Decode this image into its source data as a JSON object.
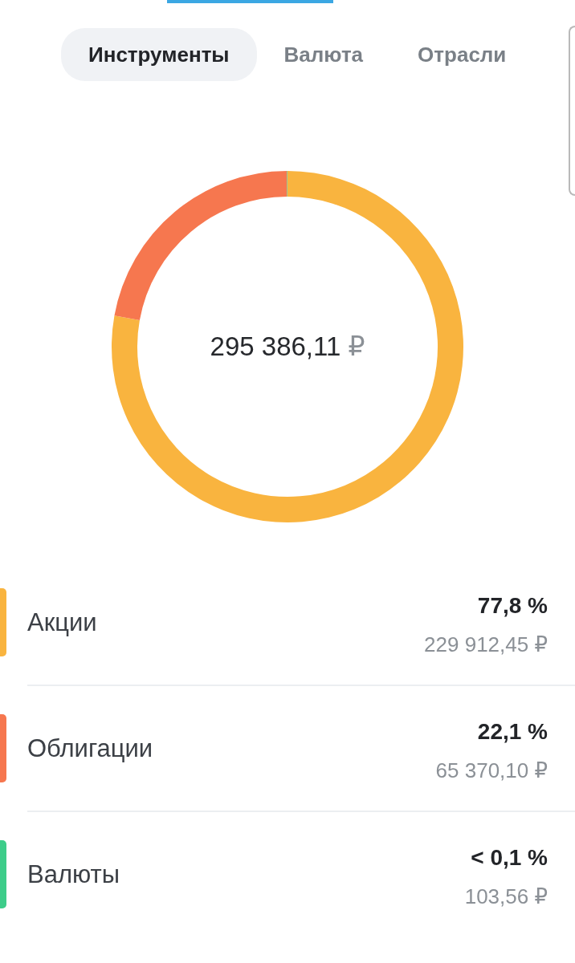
{
  "chart_data": {
    "type": "donut",
    "categories": [
      "Акции",
      "Облигации",
      "Валюты"
    ],
    "values": [
      77.83,
      22.13,
      0.04
    ],
    "colors": [
      "#f9b43f",
      "#f6774f",
      "#3dcd8a"
    ],
    "legend": "bottom",
    "annotations": [
      "Инструменты",
      "Валюта",
      "Отрасли",
      "295 386,11 ₽",
      {
        "text": "77,8 %",
        "x": "Акции"
      },
      {
        "text": "229 912,45 ₽",
        "x": "Акции"
      },
      {
        "text": "22,1 %",
        "x": "Облигации"
      },
      {
        "text": "65 370,10 ₽",
        "x": "Облигации"
      },
      {
        "text": "< 0,1 %",
        "x": "Валюты"
      },
      {
        "text": "103,56 ₽",
        "x": "Валюты"
      }
    ]
  }
}
